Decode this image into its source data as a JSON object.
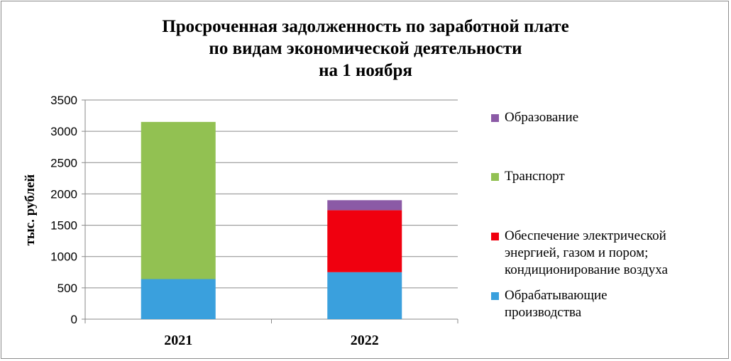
{
  "chart_data": {
    "type": "bar",
    "stacked": true,
    "title_lines": [
      "Просроченная задолженность по заработной плате",
      "по видам экономической деятельности",
      "на 1 ноября"
    ],
    "xlabel": "",
    "ylabel": "тыс. рублей",
    "categories": [
      "2021",
      "2022"
    ],
    "ylim": [
      0,
      3500
    ],
    "yticks": [
      0,
      500,
      1000,
      1500,
      2000,
      2500,
      3000,
      3500
    ],
    "grid": true,
    "legend_position": "right",
    "series": [
      {
        "name": "Обрабатывающие производства",
        "color": "#3aa0dd",
        "values": [
          640,
          750
        ]
      },
      {
        "name": "Обеспечение электрической энергией, газом и пором; кондиционирование воздуха",
        "color": "#f0000f",
        "values": [
          0,
          990
        ]
      },
      {
        "name": "Транспорт",
        "color": "#92c152",
        "values": [
          2510,
          0
        ]
      },
      {
        "name": "Образование",
        "color": "#8b5aa6",
        "values": [
          0,
          160
        ]
      }
    ],
    "legend_order": [
      3,
      2,
      1,
      0
    ],
    "legend_labels": [
      "Образование",
      "Транспорт",
      "Обеспечение электрической\nэнергией, газом и пором;\nкондиционирование воздуха",
      "Обрабатывающие\nпроизводства"
    ]
  }
}
